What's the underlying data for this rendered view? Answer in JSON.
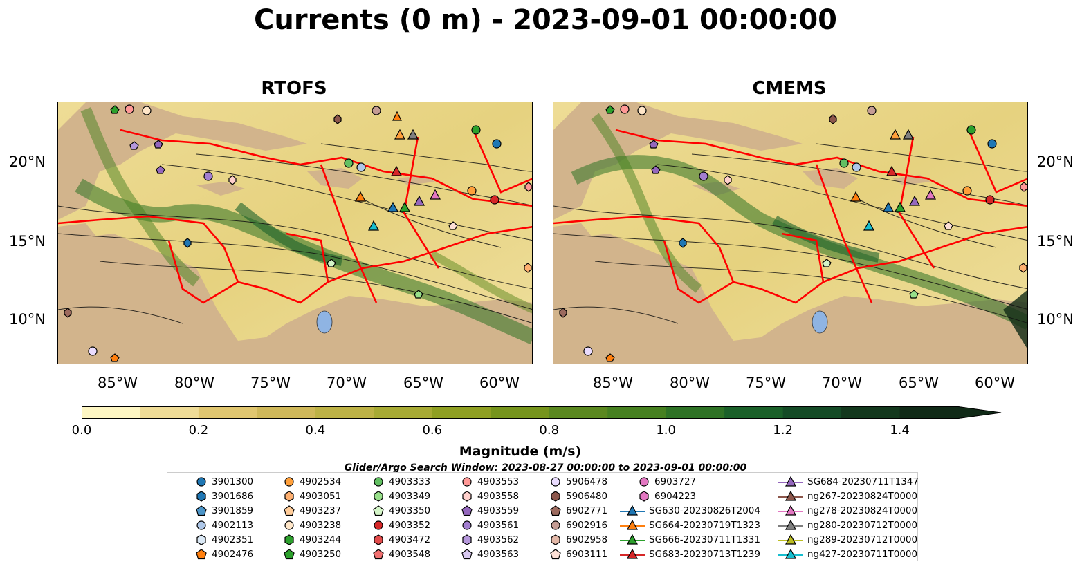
{
  "title": "Currents (0 m) - 2023-09-01 00:00:00",
  "panels": [
    {
      "title": "RTOFS"
    },
    {
      "title": "CMEMS"
    }
  ],
  "lat_ticks": [
    "20°N",
    "15°N",
    "10°N"
  ],
  "lon_ticks": [
    "85°W",
    "80°W",
    "75°W",
    "70°W",
    "65°W",
    "60°W"
  ],
  "colorbar": {
    "label": "Magnitude (m/s)",
    "ticks": [
      "0.0",
      "0.2",
      "0.4",
      "0.6",
      "0.8",
      "1.0",
      "1.2",
      "1.4"
    ],
    "range": [
      0.0,
      1.5
    ],
    "extend": "max",
    "colors": [
      "#fdf6c3",
      "#efdc97",
      "#e0c670",
      "#cfb85a",
      "#bdb246",
      "#a7aa34",
      "#8f9f22",
      "#76941c",
      "#5b881f",
      "#468020",
      "#2e7225",
      "#1a6029",
      "#144b26",
      "#13381d",
      "#102a17"
    ]
  },
  "legend": {
    "title": "Glider/Argo Search Window: 2023-08-27 00:00:00 to 2023-09-01 00:00:00",
    "columns": [
      [
        {
          "label": "3901300",
          "marker": "circle",
          "color": "#1f77b4"
        },
        {
          "label": "3901686",
          "marker": "hexagon",
          "color": "#1f77b4"
        },
        {
          "label": "3901859",
          "marker": "pentagon",
          "color": "#4c95c8"
        },
        {
          "label": "4902113",
          "marker": "circle",
          "color": "#aec7e8"
        },
        {
          "label": "4902351",
          "marker": "hexagon",
          "color": "#dbe9f6"
        },
        {
          "label": "4902476",
          "marker": "pentagon",
          "color": "#ff7f0e"
        }
      ],
      [
        {
          "label": "4902534",
          "marker": "circle",
          "color": "#ff9f3a"
        },
        {
          "label": "4903051",
          "marker": "hexagon",
          "color": "#ffb070"
        },
        {
          "label": "4903237",
          "marker": "pentagon",
          "color": "#ffcc99"
        },
        {
          "label": "4903238",
          "marker": "circle",
          "color": "#ffe6c8"
        },
        {
          "label": "4903244",
          "marker": "hexagon",
          "color": "#2ca02c"
        },
        {
          "label": "4903250",
          "marker": "pentagon",
          "color": "#2ca02c"
        }
      ],
      [
        {
          "label": "4903333",
          "marker": "circle",
          "color": "#62c062"
        },
        {
          "label": "4903349",
          "marker": "hexagon",
          "color": "#98df8a"
        },
        {
          "label": "4903350",
          "marker": "pentagon",
          "color": "#d4f5c8"
        },
        {
          "label": "4903352",
          "marker": "circle",
          "color": "#d62728"
        },
        {
          "label": "4903472",
          "marker": "hexagon",
          "color": "#e24a4a"
        },
        {
          "label": "4903548",
          "marker": "pentagon",
          "color": "#f07070"
        }
      ],
      [
        {
          "label": "4903553",
          "marker": "circle",
          "color": "#ff9896"
        },
        {
          "label": "4903558",
          "marker": "hexagon",
          "color": "#ffd0cc"
        },
        {
          "label": "4903559",
          "marker": "pentagon",
          "color": "#9467bd"
        },
        {
          "label": "4903561",
          "marker": "circle",
          "color": "#a27ed0"
        },
        {
          "label": "4903562",
          "marker": "hexagon",
          "color": "#b597db"
        },
        {
          "label": "4903563",
          "marker": "pentagon",
          "color": "#d8c8f0"
        }
      ],
      [
        {
          "label": "5906478",
          "marker": "circle",
          "color": "#eadcff"
        },
        {
          "label": "5906480",
          "marker": "hexagon",
          "color": "#8c564b"
        },
        {
          "label": "6902771",
          "marker": "pentagon",
          "color": "#9c6a5e"
        },
        {
          "label": "6902916",
          "marker": "circle",
          "color": "#c49c94"
        },
        {
          "label": "6902958",
          "marker": "hexagon",
          "color": "#e3b8a8"
        },
        {
          "label": "6903111",
          "marker": "pentagon",
          "color": "#fde0d6"
        }
      ],
      [
        {
          "label": "6903727",
          "marker": "circle",
          "color": "#e377c2"
        },
        {
          "label": "6904223",
          "marker": "hexagon",
          "color": "#e377c2"
        },
        {
          "label": "SG630-20230826T2004",
          "marker": "triangle-line",
          "color": "#1f77b4"
        },
        {
          "label": "SG664-20230719T1323",
          "marker": "triangle-line",
          "color": "#ff7f0e"
        },
        {
          "label": "SG666-20230711T1331",
          "marker": "triangle-line",
          "color": "#2ca02c"
        },
        {
          "label": "SG683-20230713T1239",
          "marker": "triangle-line",
          "color": "#d62728"
        }
      ],
      [
        {
          "label": "SG684-20230711T1347",
          "marker": "triangle-line",
          "color": "#9467bd"
        },
        {
          "label": "ng267-20230824T0000",
          "marker": "triangle-line",
          "color": "#8c564b"
        },
        {
          "label": "ng278-20230824T0000",
          "marker": "triangle-line",
          "color": "#e377c2"
        },
        {
          "label": "ng280-20230712T0000",
          "marker": "triangle-line",
          "color": "#7f7f7f"
        },
        {
          "label": "ng289-20230712T0000",
          "marker": "triangle-line",
          "color": "#bcbd22"
        },
        {
          "label": "ng427-20230711T0000",
          "marker": "triangle-line",
          "color": "#17becf"
        }
      ]
    ]
  }
}
